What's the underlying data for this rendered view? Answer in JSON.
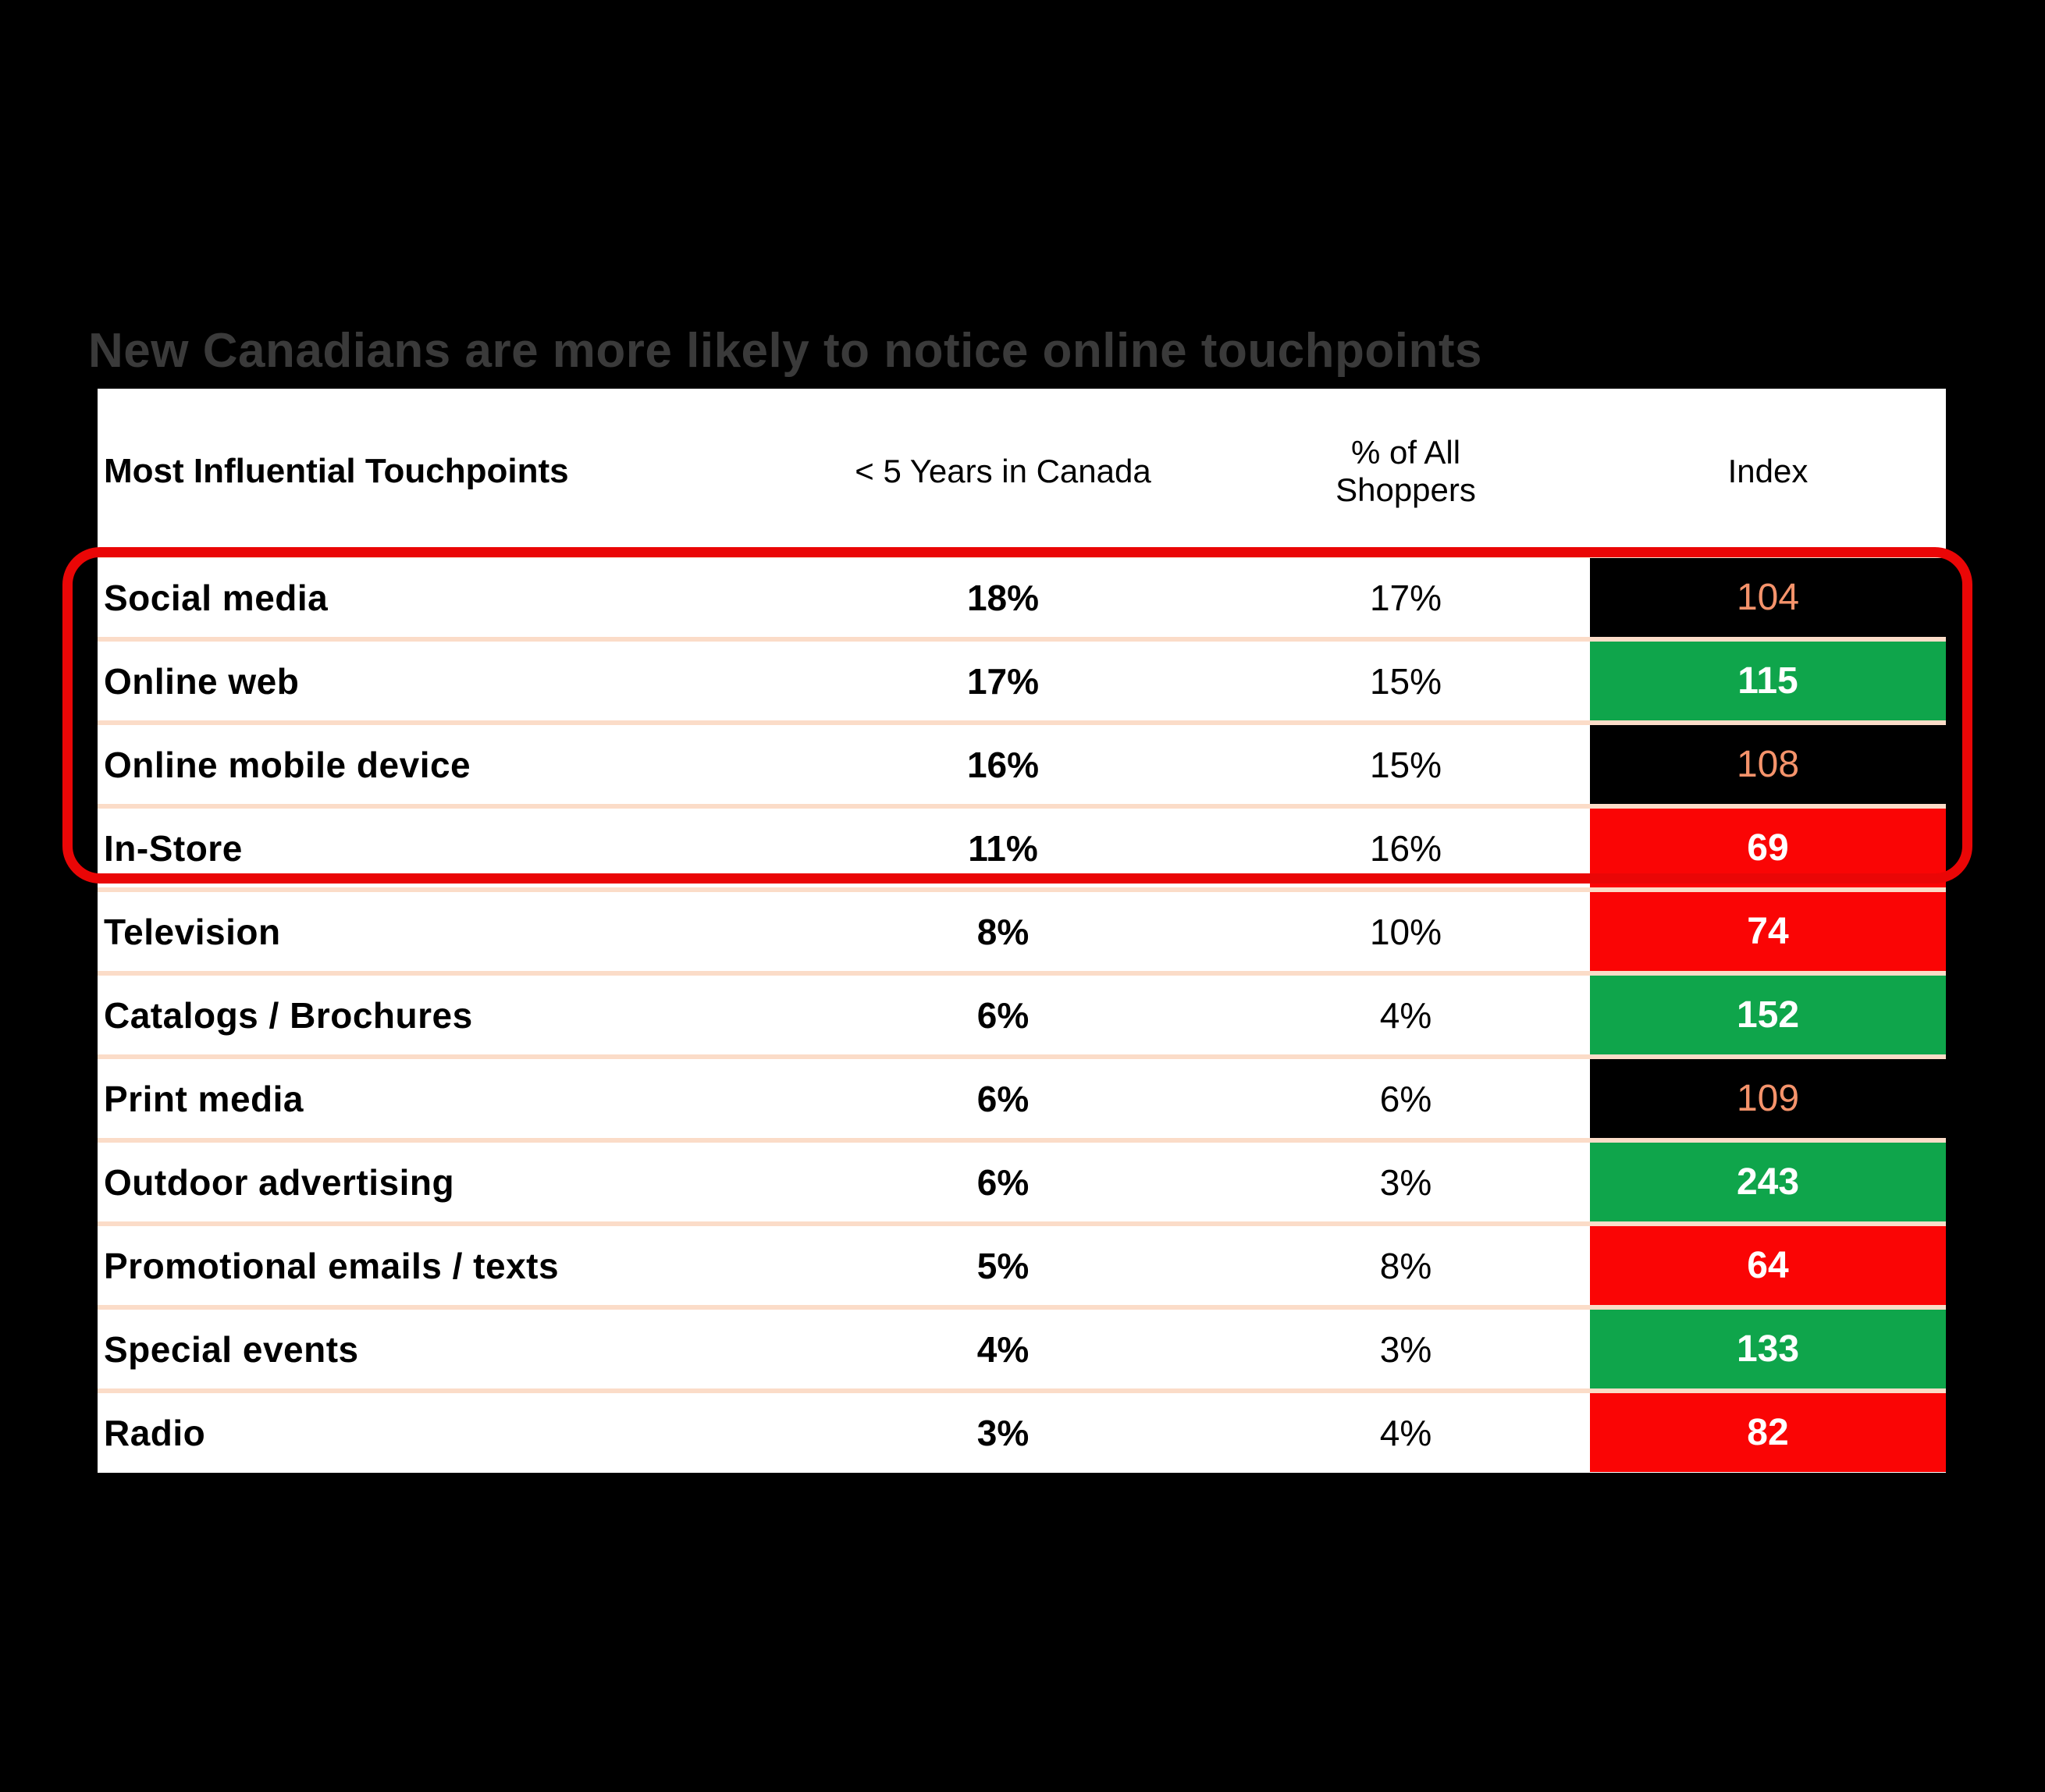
{
  "title": "New Canadians are more likely to notice online touchpoints",
  "chart_data": {
    "type": "table",
    "title": "New Canadians are more likely to notice online touchpoints",
    "columns": [
      "Most Influential Touchpoints",
      "< 5 Years in Canada",
      "% of All Shoppers",
      "Index"
    ],
    "rows": [
      {
        "touchpoint": "Social media",
        "lt5_years": "18%",
        "all_shoppers": "17%",
        "index": "104",
        "index_style": "neutral"
      },
      {
        "touchpoint": "Online web",
        "lt5_years": "17%",
        "all_shoppers": "15%",
        "index": "115",
        "index_style": "positive"
      },
      {
        "touchpoint": "Online mobile device",
        "lt5_years": "16%",
        "all_shoppers": "15%",
        "index": "108",
        "index_style": "neutral"
      },
      {
        "touchpoint": "In-Store",
        "lt5_years": "11%",
        "all_shoppers": "16%",
        "index": "69",
        "index_style": "negative"
      },
      {
        "touchpoint": "Television",
        "lt5_years": "8%",
        "all_shoppers": "10%",
        "index": "74",
        "index_style": "negative"
      },
      {
        "touchpoint": "Catalogs / Brochures",
        "lt5_years": "6%",
        "all_shoppers": "4%",
        "index": "152",
        "index_style": "positive"
      },
      {
        "touchpoint": "Print media",
        "lt5_years": "6%",
        "all_shoppers": "6%",
        "index": "109",
        "index_style": "neutral"
      },
      {
        "touchpoint": "Outdoor advertising",
        "lt5_years": "6%",
        "all_shoppers": "3%",
        "index": "243",
        "index_style": "positive"
      },
      {
        "touchpoint": "Promotional emails / texts",
        "lt5_years": "5%",
        "all_shoppers": "8%",
        "index": "64",
        "index_style": "negative"
      },
      {
        "touchpoint": "Special events",
        "lt5_years": "4%",
        "all_shoppers": "3%",
        "index": "133",
        "index_style": "positive"
      },
      {
        "touchpoint": "Radio",
        "lt5_years": "3%",
        "all_shoppers": "4%",
        "index": "82",
        "index_style": "negative"
      }
    ],
    "highlighted_rows": [
      "Social media",
      "Online web",
      "Online mobile device",
      "In-Store"
    ],
    "legend_position": "none",
    "grid": "horizontal-separators"
  },
  "colors": {
    "background": "#000000",
    "table_background": "#ffffff",
    "title_text": "#3a3a3a",
    "row_separator": "#fbdcc8",
    "index_positive_bg": "#0fa54b",
    "index_negative_bg": "#fa0505",
    "index_neutral_bg": "#000000",
    "index_neutral_text": "#f5936b",
    "index_highlight_text": "#ffffff",
    "highlight_border": "#ea0606"
  }
}
